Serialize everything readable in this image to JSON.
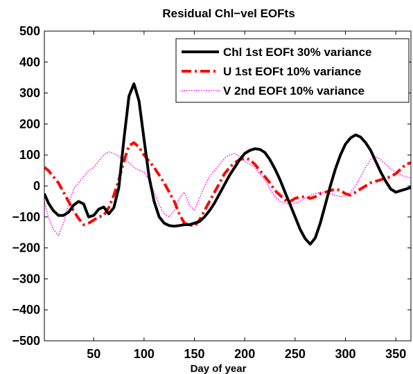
{
  "chart_data": {
    "type": "line",
    "title": "Residual Chl−vel EOFts",
    "xlabel": "Day of year",
    "ylabel": "",
    "xlim": [
      1,
      365
    ],
    "ylim": [
      -500,
      500
    ],
    "xticks": [
      50,
      100,
      150,
      200,
      250,
      300,
      350
    ],
    "yticks": [
      -500,
      -400,
      -300,
      -200,
      -100,
      0,
      100,
      200,
      300,
      400,
      500
    ],
    "xtick_labels": [
      "50",
      "100",
      "150",
      "200",
      "250",
      "300",
      "350"
    ],
    "ytick_labels": [
      "−500",
      "−400",
      "−300",
      "−200",
      "−100",
      "0",
      "100",
      "200",
      "300",
      "400",
      "500"
    ],
    "grid": false,
    "legend_position": "top-right",
    "series": [
      {
        "name": "Chl 1st EOFt 30% variance",
        "color": "#000000",
        "line_style": "solid",
        "x": [
          1,
          5,
          10,
          15,
          20,
          25,
          30,
          35,
          40,
          45,
          50,
          55,
          60,
          65,
          70,
          75,
          80,
          85,
          90,
          95,
          100,
          105,
          110,
          115,
          120,
          125,
          130,
          135,
          140,
          145,
          150,
          155,
          160,
          165,
          170,
          175,
          180,
          185,
          190,
          195,
          200,
          205,
          210,
          215,
          220,
          225,
          230,
          235,
          240,
          245,
          250,
          255,
          260,
          265,
          270,
          275,
          280,
          285,
          290,
          295,
          300,
          305,
          310,
          315,
          320,
          325,
          330,
          335,
          340,
          345,
          350,
          355,
          360,
          365
        ],
        "y": [
          -25,
          -55,
          -80,
          -95,
          -95,
          -85,
          -62,
          -50,
          -58,
          -100,
          -95,
          -75,
          -68,
          -90,
          -70,
          -5,
          150,
          290,
          330,
          275,
          150,
          30,
          -50,
          -100,
          -120,
          -128,
          -130,
          -128,
          -125,
          -125,
          -120,
          -115,
          -100,
          -80,
          -55,
          -25,
          5,
          35,
          60,
          85,
          105,
          115,
          120,
          118,
          108,
          85,
          55,
          20,
          -20,
          -60,
          -100,
          -140,
          -170,
          -188,
          -168,
          -120,
          -60,
          0,
          55,
          100,
          135,
          155,
          165,
          158,
          140,
          115,
          80,
          45,
          15,
          -10,
          -20,
          -15,
          -10,
          -5
        ]
      },
      {
        "name": "U 1st EOFt 10% variance",
        "color": "#ff0000",
        "line_style": "dashdot",
        "x": [
          1,
          5,
          10,
          15,
          20,
          25,
          30,
          35,
          40,
          45,
          50,
          55,
          60,
          65,
          70,
          75,
          80,
          85,
          90,
          95,
          100,
          105,
          110,
          115,
          120,
          125,
          130,
          135,
          140,
          145,
          150,
          155,
          160,
          165,
          170,
          175,
          180,
          185,
          190,
          195,
          200,
          205,
          210,
          215,
          220,
          225,
          230,
          235,
          240,
          245,
          250,
          255,
          260,
          265,
          270,
          275,
          280,
          285,
          290,
          295,
          300,
          305,
          310,
          315,
          320,
          325,
          330,
          335,
          340,
          345,
          350,
          355,
          360,
          365
        ],
        "y": [
          60,
          50,
          30,
          10,
          -20,
          -50,
          -80,
          -105,
          -125,
          -120,
          -110,
          -100,
          -95,
          -70,
          -30,
          20,
          80,
          130,
          140,
          125,
          100,
          80,
          60,
          35,
          10,
          -20,
          -50,
          -90,
          -120,
          -125,
          -130,
          -110,
          -80,
          -50,
          -20,
          10,
          40,
          60,
          75,
          85,
          90,
          85,
          70,
          50,
          30,
          10,
          -15,
          -30,
          -45,
          -50,
          -40,
          -35,
          -35,
          -40,
          -35,
          -25,
          -20,
          -15,
          -10,
          -15,
          -25,
          -30,
          -20,
          -10,
          0,
          10,
          15,
          20,
          25,
          30,
          40,
          55,
          70,
          75
        ]
      },
      {
        "name": "V 2nd EOFt 10% variance",
        "color": "#ff00ff",
        "line_style": "dotted",
        "x": [
          1,
          5,
          10,
          15,
          20,
          25,
          30,
          35,
          40,
          45,
          50,
          55,
          60,
          65,
          70,
          75,
          80,
          85,
          90,
          95,
          100,
          105,
          110,
          115,
          120,
          125,
          130,
          135,
          140,
          145,
          150,
          155,
          160,
          165,
          170,
          175,
          180,
          185,
          190,
          195,
          200,
          205,
          210,
          215,
          220,
          225,
          230,
          235,
          240,
          245,
          250,
          255,
          260,
          265,
          270,
          275,
          280,
          285,
          290,
          295,
          300,
          305,
          310,
          315,
          320,
          325,
          330,
          335,
          340,
          345,
          350,
          355,
          360,
          365
        ],
        "y": [
          -50,
          -100,
          -140,
          -160,
          -120,
          -60,
          -10,
          10,
          30,
          50,
          60,
          80,
          100,
          110,
          105,
          95,
          85,
          75,
          60,
          50,
          45,
          20,
          -20,
          -60,
          -90,
          -100,
          -80,
          -40,
          -20,
          -60,
          -80,
          -40,
          0,
          30,
          50,
          70,
          90,
          100,
          105,
          95,
          80,
          70,
          60,
          40,
          20,
          -10,
          -35,
          -50,
          -55,
          -60,
          -55,
          -50,
          -40,
          -30,
          -25,
          -20,
          -20,
          -25,
          -30,
          -35,
          -30,
          -20,
          0,
          30,
          60,
          85,
          95,
          85,
          70,
          55,
          45,
          35,
          30,
          25
        ]
      }
    ]
  }
}
